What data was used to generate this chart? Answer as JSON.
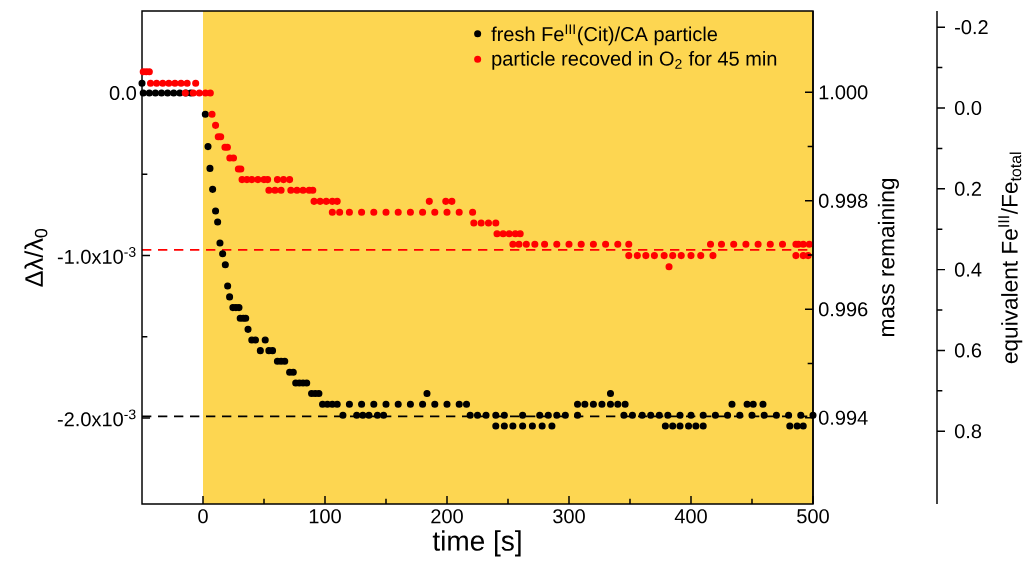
{
  "chart_data": {
    "type": "scatter",
    "xlabel": "time [s]",
    "ylabel": "Δλ/λ$_{0}$",
    "y2label": "mass remaining",
    "y3label": "equivalent Fe$^{III}$/Fe$_{total}$",
    "xlim": [
      -50,
      500
    ],
    "xticks": [
      0,
      100,
      200,
      300,
      400,
      500
    ],
    "ylim": [
      -0.00253,
      0.000505
    ],
    "yticks": [
      {
        "value": 0,
        "label": "0.0"
      },
      {
        "value": -0.001,
        "label": "-1.0x10$^{-3}$"
      },
      {
        "value": -0.002,
        "label": "-2.0x10$^{-3}$"
      }
    ],
    "y2lim": [
      0.99241,
      1.0015
    ],
    "y2ticks": [
      {
        "value": 1.0,
        "label": "1.000"
      },
      {
        "value": 0.998,
        "label": "0.998"
      },
      {
        "value": 0.996,
        "label": "0.996"
      },
      {
        "value": 0.994,
        "label": "0.994"
      }
    ],
    "y3lim": [
      0.98,
      -0.24
    ],
    "y3ticks": [
      {
        "value": -0.2,
        "label": "-0.2"
      },
      {
        "value": 0.0,
        "label": "0.0"
      },
      {
        "value": 0.2,
        "label": "0.2"
      },
      {
        "value": 0.4,
        "label": "0.4"
      },
      {
        "value": 0.6,
        "label": "0.6"
      },
      {
        "value": 0.8,
        "label": "0.8"
      }
    ],
    "marker": "circle",
    "legend": "top right",
    "bands": [
      {
        "axis": "x",
        "from": 0,
        "to": 500,
        "color": "#fdd651"
      }
    ],
    "ref_lines": [
      {
        "axis": "y",
        "value": -0.000965,
        "color": "#ff0000",
        "line_style": "dashed"
      },
      {
        "axis": "y",
        "value": -0.00199,
        "color": "#000000",
        "line_style": "dashed"
      }
    ],
    "series": [
      {
        "name": "fresh Fe$^{III}$(Cit)/CA particle",
        "color": "#000000",
        "x": [
          -50,
          -49,
          -44,
          -39,
          -34,
          -29,
          -24,
          -19,
          -14,
          -10,
          1.9,
          4.1,
          5.7,
          7.9,
          10.3,
          12,
          13.9,
          16.1,
          18.3,
          20.2,
          21.8,
          24.5,
          27,
          29.5,
          30.5,
          33,
          35,
          36.9,
          40,
          43,
          47,
          51,
          54,
          57,
          61,
          64,
          67,
          71,
          74,
          76,
          79,
          82,
          85,
          89,
          92,
          95,
          98,
          102,
          106,
          110,
          120,
          130,
          140,
          150,
          160,
          170,
          180,
          190,
          200,
          210,
          216,
          114.7,
          126,
          131,
          136,
          143,
          148,
          183.6,
          219,
          225,
          232,
          240,
          247,
          262,
          276,
          283,
          290,
          297,
          307,
          345,
          352,
          360,
          367,
          374,
          381,
          391,
          400,
          410,
          420,
          430,
          440,
          450,
          460,
          470,
          480,
          490,
          500,
          240,
          247,
          254,
          262,
          270,
          278,
          286,
          379,
          385,
          391,
          398,
          404,
          410,
          481,
          487,
          492,
          307,
          313,
          320,
          327,
          334,
          340,
          346,
          433.6,
          446,
          451,
          459,
          334
        ],
        "values": [
          6e-05,
          0,
          0,
          0,
          0,
          0,
          0,
          0,
          0,
          0,
          -0.000131,
          -0.00033,
          -0.000464,
          -0.000593,
          -0.000726,
          -0.000794,
          -0.000923,
          -0.000989,
          -0.001057,
          -0.001188,
          -0.001255,
          -0.001321,
          -0.001321,
          -0.001321,
          -0.001387,
          -0.001387,
          -0.001387,
          -0.001455,
          -0.00152,
          -0.00152,
          -0.001586,
          -0.00152,
          -0.001586,
          -0.001586,
          -0.001651,
          -0.001651,
          -0.001651,
          -0.001719,
          -0.001719,
          -0.001785,
          -0.001785,
          -0.001785,
          -0.001785,
          -0.00185,
          -0.00185,
          -0.00185,
          -0.001916,
          -0.001916,
          -0.001916,
          -0.001916,
          -0.001916,
          -0.001916,
          -0.001916,
          -0.001916,
          -0.001916,
          -0.001916,
          -0.001916,
          -0.001916,
          -0.001916,
          -0.001916,
          -0.001916,
          -0.001984,
          -0.001984,
          -0.001984,
          -0.001984,
          -0.001984,
          -0.001984,
          -0.00185,
          -0.001984,
          -0.001984,
          -0.001984,
          -0.001984,
          -0.001984,
          -0.001984,
          -0.001984,
          -0.001984,
          -0.001984,
          -0.001984,
          -0.001984,
          -0.001984,
          -0.001984,
          -0.001984,
          -0.001984,
          -0.001984,
          -0.001984,
          -0.001984,
          -0.001984,
          -0.001984,
          -0.001984,
          -0.001984,
          -0.001984,
          -0.001984,
          -0.001984,
          -0.001984,
          -0.001984,
          -0.001984,
          -0.001984,
          -0.00205,
          -0.00205,
          -0.00205,
          -0.00205,
          -0.00205,
          -0.00205,
          -0.00205,
          -0.00205,
          -0.00205,
          -0.00205,
          -0.00205,
          -0.00205,
          -0.00205,
          -0.00205,
          -0.00205,
          -0.00205,
          -0.001916,
          -0.001916,
          -0.001916,
          -0.001916,
          -0.001916,
          -0.001916,
          -0.001916,
          -0.001916,
          -0.001916,
          -0.001916,
          -0.001916,
          -0.00185
        ]
      },
      {
        "name": "particle recoved in O$_{2}$ for 45 min",
        "color": "#ff0000",
        "x": [
          -49,
          -46.5,
          -44,
          -43,
          -38,
          -33,
          -28,
          -23,
          -18,
          -13,
          -6,
          -14.5,
          -8,
          -3,
          2,
          6,
          7.4,
          10.3,
          12.5,
          14.5,
          18,
          20,
          22,
          25,
          29,
          31,
          32,
          36,
          40,
          45,
          50,
          53,
          61,
          66,
          71,
          54,
          59,
          64,
          72,
          77,
          82,
          87,
          90,
          91,
          96,
          101,
          106,
          110,
          185.5,
          199,
          204,
          106,
          112,
          120,
          130,
          140,
          150,
          160,
          170,
          180,
          190,
          200,
          210,
          221,
          222,
          228,
          234,
          240,
          241,
          246,
          251,
          256,
          260,
          254,
          259,
          265,
          272,
          280,
          290,
          300,
          310,
          320,
          330,
          340,
          349,
          416,
          425,
          435,
          445,
          455,
          465,
          475,
          486,
          488,
          492,
          497,
          349,
          356,
          363,
          370,
          378,
          385,
          392,
          400,
          408,
          418,
          486,
          492,
          496,
          382
        ],
        "values": [
          0.000131,
          0.000131,
          0.000131,
          6e-05,
          6e-05,
          6e-05,
          6e-05,
          6e-05,
          6e-05,
          6e-05,
          6e-05,
          0,
          0,
          0,
          0,
          0,
          -0.000131,
          -0.000199,
          -0.000269,
          -0.000269,
          -0.000334,
          -0.000334,
          -0.0004,
          -0.0004,
          -0.000468,
          -0.000468,
          -0.000533,
          -0.000533,
          -0.000533,
          -0.000533,
          -0.000533,
          -0.000533,
          -0.000533,
          -0.000533,
          -0.000533,
          -0.000599,
          -0.000599,
          -0.000599,
          -0.000599,
          -0.000599,
          -0.000599,
          -0.000599,
          -0.000599,
          -0.000667,
          -0.000667,
          -0.000667,
          -0.000667,
          -0.000667,
          -0.000667,
          -0.000667,
          -0.000667,
          -0.000734,
          -0.000734,
          -0.000734,
          -0.000734,
          -0.000734,
          -0.000734,
          -0.000734,
          -0.000734,
          -0.000734,
          -0.000734,
          -0.000734,
          -0.000734,
          -0.000734,
          -0.0008,
          -0.0008,
          -0.0008,
          -0.0008,
          -0.000866,
          -0.000866,
          -0.000866,
          -0.000866,
          -0.000866,
          -0.000931,
          -0.000931,
          -0.000931,
          -0.000931,
          -0.000931,
          -0.000931,
          -0.000931,
          -0.000931,
          -0.000931,
          -0.000931,
          -0.000931,
          -0.000931,
          -0.000931,
          -0.000931,
          -0.000931,
          -0.000931,
          -0.000931,
          -0.000931,
          -0.000931,
          -0.000931,
          -0.000931,
          -0.000931,
          -0.000931,
          -0.001001,
          -0.001001,
          -0.001001,
          -0.001001,
          -0.001001,
          -0.001001,
          -0.001001,
          -0.001001,
          -0.001001,
          -0.001001,
          -0.001001,
          -0.001001,
          -0.001001,
          -0.001069
        ]
      }
    ]
  }
}
